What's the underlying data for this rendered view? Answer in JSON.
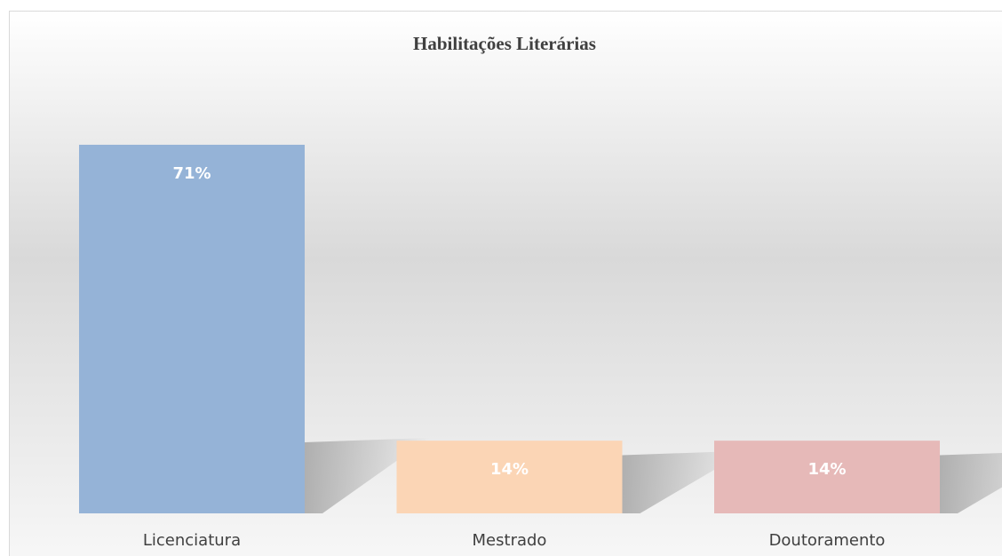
{
  "chart_data": {
    "type": "bar",
    "title": "Habilitações Literárias",
    "categories": [
      "Licenciatura",
      "Mestrado",
      "Doutoramento"
    ],
    "values": [
      71,
      14,
      14
    ],
    "value_labels": [
      "71%",
      "14%",
      "14%"
    ],
    "colors": [
      "#95b3d7",
      "#fbd5b5",
      "#e6b9b8"
    ]
  }
}
